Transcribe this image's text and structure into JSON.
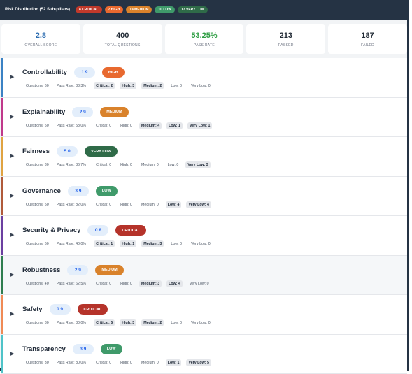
{
  "topbar": {
    "title": "Risk Distribution (52 Sub-pillars)",
    "badges": [
      {
        "label": "8 CRITICAL",
        "color": "#c0392b"
      },
      {
        "label": "7 HIGH",
        "color": "#e8692f"
      },
      {
        "label": "14 MEDIUM",
        "color": "#d9822b"
      },
      {
        "label": "10 LOW",
        "color": "#3f9a6a"
      },
      {
        "label": "13 VERY LOW",
        "color": "#2f6b48"
      }
    ]
  },
  "stats": [
    {
      "value": "2.8",
      "label": "Overall Score",
      "color": "#2b6cb0"
    },
    {
      "value": "400",
      "label": "Total Questions",
      "color": "#222b36"
    },
    {
      "value": "53.25%",
      "label": "Pass Rate",
      "color": "#2f9e44"
    },
    {
      "value": "213",
      "label": "Passed",
      "color": "#222b36"
    },
    {
      "value": "187",
      "label": "Failed",
      "color": "#222b36"
    }
  ],
  "pillars": [
    {
      "name": "Controllability",
      "score": "1.9",
      "level": "HIGH",
      "level_color": "#e8692f",
      "accent": "#3b82c4",
      "questions": "Questions: 60",
      "pass_rate": "Pass Rate: 33.3%",
      "critical": "Critical: 2",
      "high": "High: 3",
      "medium": "Medium: 2",
      "low": "Low: 0",
      "very_low": "Very Low: 0"
    },
    {
      "name": "Explainability",
      "score": "2.9",
      "level": "MEDIUM",
      "level_color": "#d9822b",
      "accent": "#c0398b",
      "questions": "Questions: 50",
      "pass_rate": "Pass Rate: 58.0%",
      "critical": "Critical: 0",
      "high": "High: 0",
      "medium": "Medium: 4",
      "low": "Low: 1",
      "very_low": "Very Low: 1"
    },
    {
      "name": "Fairness",
      "score": "5.0",
      "level": "VERY LOW",
      "level_color": "#2f6b48",
      "accent": "#e0a341",
      "questions": "Questions: 30",
      "pass_rate": "Pass Rate: 86.7%",
      "critical": "Critical: 0",
      "high": "High: 0",
      "medium": "Medium: 0",
      "low": "Low: 0",
      "very_low": "Very Low: 3"
    },
    {
      "name": "Governance",
      "score": "3.9",
      "level": "LOW",
      "level_color": "#3f9a6a",
      "accent": "#b05a3a",
      "questions": "Questions: 50",
      "pass_rate": "Pass Rate: 82.0%",
      "critical": "Critical: 0",
      "high": "High: 0",
      "medium": "Medium: 0",
      "low": "Low: 4",
      "very_low": "Very Low: 4"
    },
    {
      "name": "Security & Privacy",
      "score": "0.8",
      "level": "CRITICAL",
      "level_color": "#b5332a",
      "accent": "#6b3fa0",
      "questions": "Questions: 60",
      "pass_rate": "Pass Rate: 40.0%",
      "critical": "Critical: 1",
      "high": "High: 1",
      "medium": "Medium: 3",
      "low": "Low: 0",
      "very_low": "Very Low: 0"
    },
    {
      "name": "Robustness",
      "score": "2.9",
      "level": "MEDIUM",
      "level_color": "#d9822b",
      "accent": "#2e7d4f",
      "questions": "Questions: 40",
      "pass_rate": "Pass Rate: 62.5%",
      "critical": "Critical: 0",
      "high": "High: 0",
      "medium": "Medium: 3",
      "low": "Low: 4",
      "very_low": "Very Low: 0"
    },
    {
      "name": "Safety",
      "score": "0.9",
      "level": "CRITICAL",
      "level_color": "#b5332a",
      "accent": "#f08a55",
      "questions": "Questions: 80",
      "pass_rate": "Pass Rate: 30.0%",
      "critical": "Critical: 5",
      "high": "High: 3",
      "medium": "Medium: 2",
      "low": "Low: 0",
      "very_low": "Very Low: 0"
    },
    {
      "name": "Transparency",
      "score": "3.9",
      "level": "LOW",
      "level_color": "#3f9a6a",
      "accent": "#4fc3c8",
      "questions": "Questions: 30",
      "pass_rate": "Pass Rate: 80.0%",
      "critical": "Critical: 0",
      "high": "High: 0",
      "medium": "Medium: 0",
      "low": "Low: 1",
      "very_low": "Very Low: 5"
    }
  ]
}
